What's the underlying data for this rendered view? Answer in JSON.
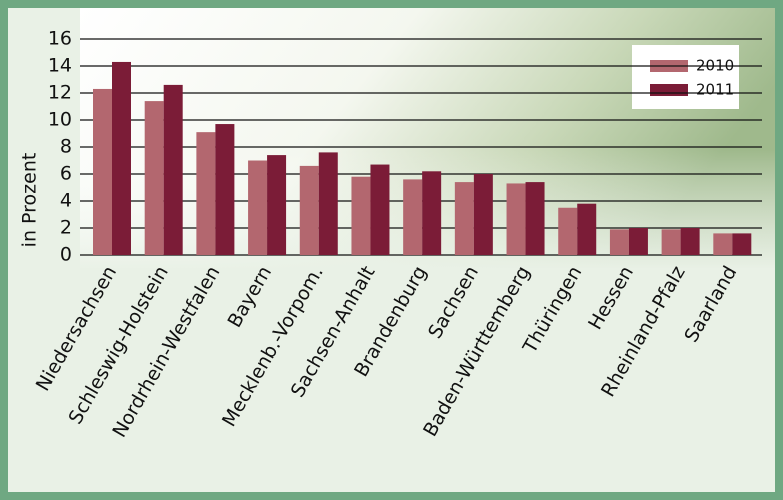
{
  "chart_data": {
    "type": "bar",
    "y_label": "in Prozent",
    "categories": [
      "Niedersachsen",
      "Schleswig-Holstein",
      "Nordrhein-Westfalen",
      "Bayern",
      "Mecklenb.-Vorpom.",
      "Sachsen-Anhalt",
      "Brandenburg",
      "Sachsen",
      "Baden-Württemberg",
      "Thüringen",
      "Hessen",
      "Rheinland-Pfalz",
      "Saarland"
    ],
    "series": [
      {
        "name": "2010",
        "color": "#b3676f",
        "values": [
          12.3,
          11.4,
          9.1,
          7.0,
          6.6,
          5.8,
          5.6,
          5.4,
          5.3,
          3.5,
          1.9,
          1.9,
          1.6
        ]
      },
      {
        "name": "2011",
        "color": "#7b1c37",
        "values": [
          14.3,
          12.6,
          9.7,
          7.4,
          7.6,
          6.7,
          6.2,
          6.0,
          5.4,
          3.8,
          2.0,
          2.0,
          1.6
        ]
      }
    ],
    "ylim": [
      0,
      16
    ],
    "yticks": [
      0,
      2,
      4,
      6,
      8,
      10,
      12,
      14,
      16
    ],
    "grid": true,
    "legend": "top-right"
  }
}
